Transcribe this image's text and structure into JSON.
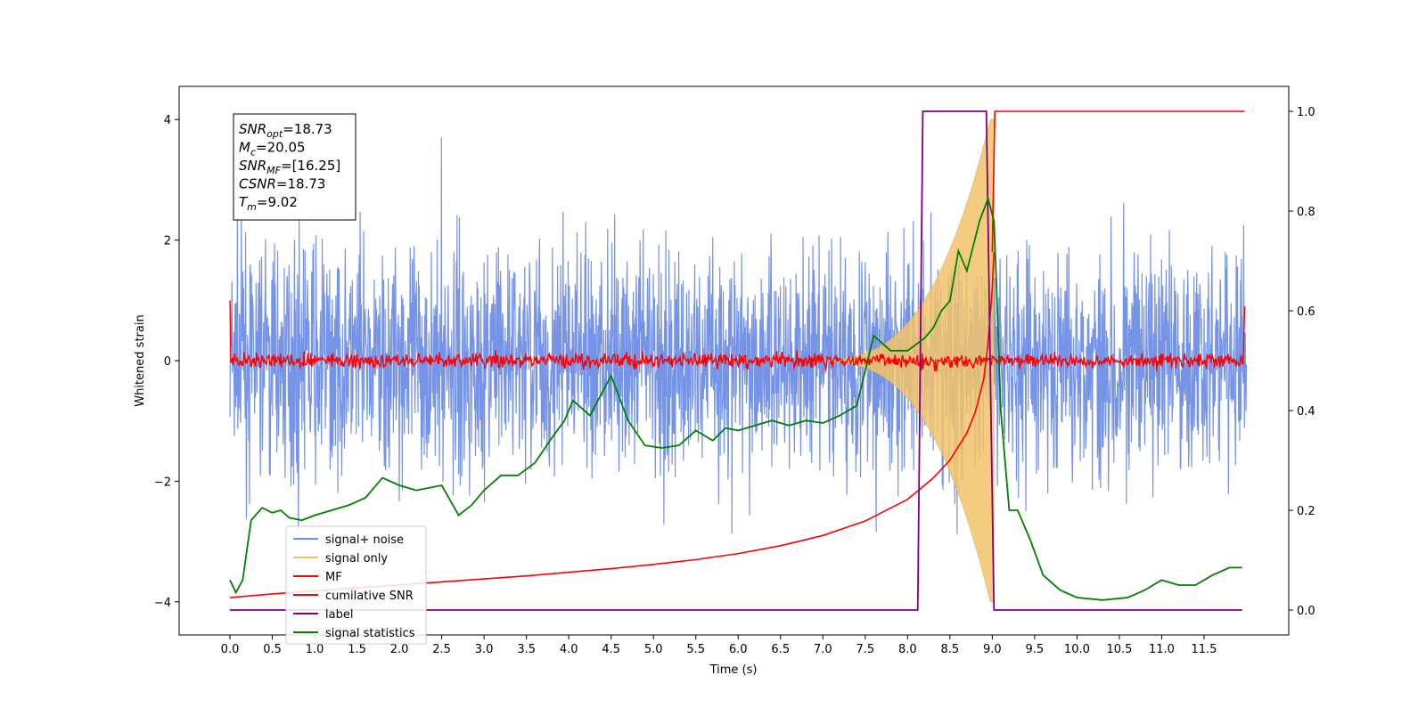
{
  "chart_data": {
    "type": "line",
    "xlabel": "Time (s)",
    "ylabel": "Whitened strain",
    "xlim": [
      -0.6,
      12.5
    ],
    "ylim_left": [
      -4.55,
      4.55
    ],
    "ylim_right": [
      -0.05,
      1.05
    ],
    "x_ticks": [
      0.0,
      0.5,
      1.0,
      1.5,
      2.0,
      2.5,
      3.0,
      3.5,
      4.0,
      4.5,
      5.0,
      5.5,
      6.0,
      6.5,
      7.0,
      7.5,
      8.0,
      8.5,
      9.0,
      9.5,
      10.0,
      10.5,
      11.0,
      11.5
    ],
    "x_tick_labels": [
      "0.0",
      "0.5",
      "1.0",
      "1.5",
      "2.0",
      "2.5",
      "3.0",
      "3.5",
      "4.0",
      "4.5",
      "5.0",
      "5.5",
      "6.0",
      "6.5",
      "7.0",
      "7.5",
      "8.0",
      "8.5",
      "9.0",
      "9.5",
      "10.0",
      "10.5",
      "11.0",
      "11.5"
    ],
    "y_left_ticks": [
      -4,
      -2,
      0,
      2,
      4
    ],
    "y_left_tick_labels": [
      "−4",
      "−2",
      "0",
      "2",
      "4"
    ],
    "y_right_ticks": [
      0.0,
      0.2,
      0.4,
      0.6,
      0.8,
      1.0
    ],
    "y_right_tick_labels": [
      "0.0",
      "0.2",
      "0.4",
      "0.6",
      "0.8",
      "1.0"
    ],
    "noise_envelope": {
      "time_range": [
        0.0,
        12.0
      ],
      "typical_amplitude": 2.2,
      "occasional_peaks": [
        3.7,
        -4.1
      ]
    },
    "series": [
      {
        "name": "signal+ noise",
        "color": "#6f8ee6",
        "axis": "left",
        "note_values": "dense noisy whitened strain, roughly ±2 to ±3.7"
      },
      {
        "name": "signal only",
        "color": "#f2c46a",
        "axis": "left",
        "chirp": {
          "start": 6.8,
          "end": 9.02,
          "peak_amplitude": 4.0
        }
      },
      {
        "name": "MF",
        "color": "#ff0000",
        "axis": "left",
        "level": 0.0,
        "noise_amplitude": 0.12,
        "edges": {
          "start": 1.0,
          "end": 0.9
        }
      },
      {
        "name": "cumilative SNR",
        "color": "#ff0000",
        "axis": "left",
        "points": [
          [
            0.0,
            -3.93
          ],
          [
            0.5,
            -3.87
          ],
          [
            1.0,
            -3.82
          ],
          [
            1.5,
            -3.77
          ],
          [
            2.0,
            -3.72
          ],
          [
            2.5,
            -3.67
          ],
          [
            3.0,
            -3.62
          ],
          [
            3.5,
            -3.57
          ],
          [
            4.0,
            -3.51
          ],
          [
            4.5,
            -3.45
          ],
          [
            5.0,
            -3.38
          ],
          [
            5.5,
            -3.3
          ],
          [
            6.0,
            -3.2
          ],
          [
            6.5,
            -3.07
          ],
          [
            7.0,
            -2.9
          ],
          [
            7.5,
            -2.66
          ],
          [
            8.0,
            -2.3
          ],
          [
            8.3,
            -1.95
          ],
          [
            8.5,
            -1.65
          ],
          [
            8.7,
            -1.2
          ],
          [
            8.8,
            -0.85
          ],
          [
            8.9,
            -0.3
          ],
          [
            8.95,
            0.3
          ],
          [
            9.0,
            1.2
          ],
          [
            9.02,
            1.8
          ]
        ]
      },
      {
        "name": "label",
        "color": "#800080",
        "axis": "right",
        "points": [
          [
            0.0,
            0.0
          ],
          [
            8.12,
            0.0
          ],
          [
            8.18,
            1.0
          ],
          [
            8.93,
            1.0
          ],
          [
            9.02,
            0.0
          ],
          [
            11.95,
            0.0
          ]
        ]
      },
      {
        "name": "signal statistics",
        "color": "#008000",
        "axis": "right",
        "points": [
          [
            0.0,
            0.06
          ],
          [
            0.07,
            0.035
          ],
          [
            0.15,
            0.06
          ],
          [
            0.25,
            0.18
          ],
          [
            0.38,
            0.205
          ],
          [
            0.5,
            0.195
          ],
          [
            0.6,
            0.2
          ],
          [
            0.7,
            0.185
          ],
          [
            0.85,
            0.18
          ],
          [
            1.0,
            0.19
          ],
          [
            1.2,
            0.2
          ],
          [
            1.4,
            0.21
          ],
          [
            1.6,
            0.225
          ],
          [
            1.8,
            0.265
          ],
          [
            2.0,
            0.25
          ],
          [
            2.2,
            0.24
          ],
          [
            2.5,
            0.25
          ],
          [
            2.7,
            0.19
          ],
          [
            2.85,
            0.21
          ],
          [
            3.0,
            0.24
          ],
          [
            3.2,
            0.27
          ],
          [
            3.4,
            0.27
          ],
          [
            3.6,
            0.295
          ],
          [
            3.8,
            0.345
          ],
          [
            3.95,
            0.38
          ],
          [
            4.05,
            0.42
          ],
          [
            4.25,
            0.39
          ],
          [
            4.5,
            0.47
          ],
          [
            4.7,
            0.38
          ],
          [
            4.9,
            0.33
          ],
          [
            5.1,
            0.325
          ],
          [
            5.3,
            0.33
          ],
          [
            5.5,
            0.36
          ],
          [
            5.7,
            0.34
          ],
          [
            5.85,
            0.365
          ],
          [
            6.0,
            0.36
          ],
          [
            6.2,
            0.37
          ],
          [
            6.4,
            0.38
          ],
          [
            6.6,
            0.37
          ],
          [
            6.8,
            0.38
          ],
          [
            7.0,
            0.375
          ],
          [
            7.2,
            0.39
          ],
          [
            7.4,
            0.41
          ],
          [
            7.6,
            0.55
          ],
          [
            7.8,
            0.52
          ],
          [
            8.0,
            0.52
          ],
          [
            8.2,
            0.545
          ],
          [
            8.3,
            0.565
          ],
          [
            8.4,
            0.6
          ],
          [
            8.5,
            0.62
          ],
          [
            8.6,
            0.72
          ],
          [
            8.7,
            0.68
          ],
          [
            8.85,
            0.78
          ],
          [
            8.95,
            0.825
          ],
          [
            9.02,
            0.78
          ],
          [
            9.05,
            0.65
          ],
          [
            9.1,
            0.4
          ],
          [
            9.2,
            0.2
          ],
          [
            9.3,
            0.2
          ],
          [
            9.45,
            0.14
          ],
          [
            9.6,
            0.07
          ],
          [
            9.8,
            0.04
          ],
          [
            10.0,
            0.025
          ],
          [
            10.3,
            0.02
          ],
          [
            10.6,
            0.025
          ],
          [
            10.8,
            0.04
          ],
          [
            11.0,
            0.06
          ],
          [
            11.2,
            0.05
          ],
          [
            11.4,
            0.05
          ],
          [
            11.6,
            0.07
          ],
          [
            11.8,
            0.085
          ],
          [
            11.95,
            0.085
          ]
        ]
      }
    ],
    "legend": {
      "position": "lower-left",
      "entries": [
        "signal+ noise",
        "signal only",
        "MF",
        "cumilative SNR",
        "label",
        "signal statistics"
      ]
    },
    "annotation_box": {
      "position": "upper-left",
      "lines": [
        {
          "sym": "SNR",
          "sub": "opt",
          "value": "=18.73"
        },
        {
          "sym": "M",
          "sub": "c",
          "value": "=20.05"
        },
        {
          "sym": "SNR",
          "sub": "MF",
          "value": "=[16.25]"
        },
        {
          "sym": "CSNR",
          "sub": "",
          "value": "=18.73"
        },
        {
          "sym": "T",
          "sub": "m",
          "value": "=9.02"
        }
      ]
    }
  }
}
